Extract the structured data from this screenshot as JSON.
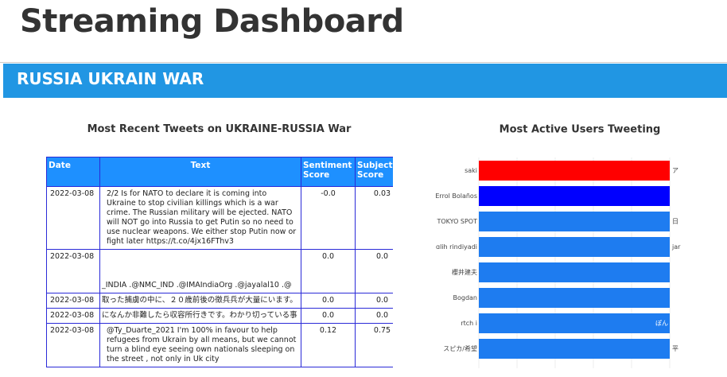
{
  "header": {
    "title": "Streaming Dashboard"
  },
  "banner": {
    "title": "RUSSIA UKRAIN WAR"
  },
  "tweets": {
    "title": "Most Recent Tweets on UKRAINE-RUSSIA War",
    "columns": [
      "Date",
      "Text",
      "Sentiment Score",
      "Subjectivity Score"
    ],
    "rows": [
      [
        "2022-03-08",
        "2/2 Is for NATO to declare it is coming into Ukraine to stop civilian killings which is a war crime. The Russian military will be ejected. NATO will NOT go into Russia to get Putin so no need to use nuclear weapons. We either stop Putin now or fight later  https://t.co/4jx16FThv3",
        "-0.0",
        "0.03"
      ],
      [
        "2022-03-08",
        "_INDIA .@NMC_IND .@IMAIndiaOrg .@jayalal10 .@",
        "0.0",
        "0.0"
      ],
      [
        "2022-03-08",
        "取った捕虜の中に、２０歳前後の徴兵兵が大量にいます。",
        "0.0",
        "0.0"
      ],
      [
        "2022-03-08",
        "になんか非難したら収容所行きです。わかり切っている事",
        "0.0",
        "0.0"
      ],
      [
        "2022-03-08",
        "@Ty_Duarte_2021 I'm 100% in favour to help refugees from Ukrain by all means, but we cannot turn a blind eye seeing own nationals sleeping on the street , not only in Uk city",
        "0.12",
        "0.75"
      ]
    ]
  },
  "chart_data": {
    "type": "bar",
    "orientation": "horizontal",
    "title": "Most Active Users Tweeting",
    "categories": [
      "saki",
      "Errol Bolaños",
      "TOKYO SPOT",
      "ɑlih rindiyadi",
      "櫻井建夫",
      "Bogdan",
      "rtch i",
      "スピカ/希望"
    ],
    "values": [
      1,
      1,
      1,
      1,
      1,
      1,
      1,
      1
    ],
    "colors": [
      "#ff0000",
      "#0000ff",
      "#1e7cf0",
      "#1e7cf0",
      "#1e7cf0",
      "#1e7cf0",
      "#1e7cf0",
      "#1e7cf0"
    ],
    "bar_texts": [
      "ア",
      null,
      "日",
      "jar",
      null,
      null,
      "ぽん",
      "平"
    ]
  }
}
